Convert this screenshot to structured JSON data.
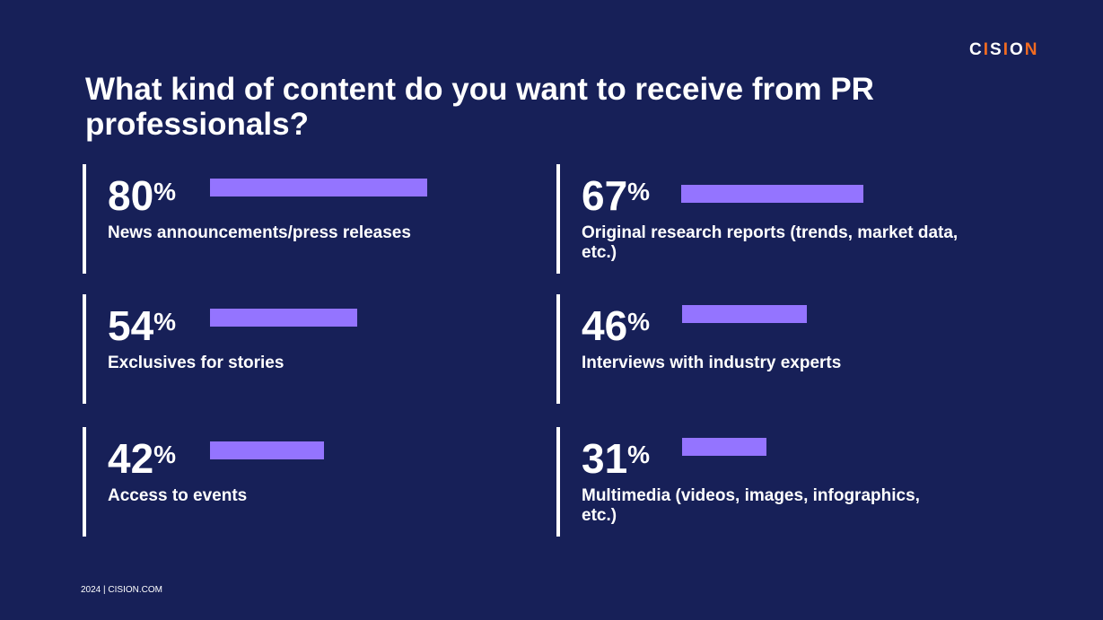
{
  "logo": {
    "text": "CISION"
  },
  "chart_data": {
    "type": "bar",
    "title": "What kind of content do you want to receive from PR professionals?",
    "unit": "%",
    "categories": [
      "News announcements/press releases",
      "Original research reports (trends, market data, etc.)",
      "Exclusives for stories",
      "Interviews with industry experts",
      "Access to events",
      "Multimedia (videos, images, infographics, etc.)"
    ],
    "values": [
      80,
      67,
      54,
      46,
      42,
      31
    ],
    "ylim": [
      0,
      100
    ],
    "bar_color": "#9474ff"
  },
  "footer": "2024 | CISION.COM",
  "colors": {
    "background": "#172058",
    "accent": "#f26b21"
  }
}
